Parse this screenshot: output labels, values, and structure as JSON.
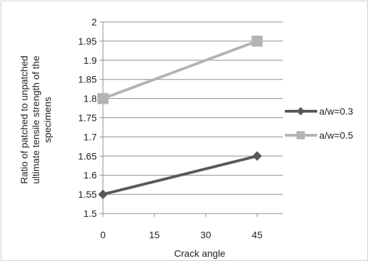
{
  "chart_data": {
    "type": "line",
    "title": "",
    "xlabel": "Crack angle",
    "ylabel": "Ratio of patched to unpatched ultimate tensile strength  of the specimens",
    "ylabel_lines": [
      "Ratio of patched to unpatched",
      "ultimate tensile strength  of the",
      "specimens"
    ],
    "x": [
      0,
      45
    ],
    "x_ticks": [
      "0",
      "15",
      "30",
      "45"
    ],
    "x_tick_values": [
      0,
      15,
      30,
      45
    ],
    "xlim": [
      0,
      52.5
    ],
    "ylim": [
      1.5,
      2.0
    ],
    "y_ticks": [
      "1.5",
      "1.55",
      "1.6",
      "1.65",
      "1.7",
      "1.75",
      "1.8",
      "1.85",
      "1.9",
      "1.95",
      "2"
    ],
    "grid": "horizontal",
    "legend_position": "right",
    "series": [
      {
        "name": "a/w=0.3",
        "values": [
          1.55,
          1.65
        ],
        "color": "#595959",
        "marker": "diamond"
      },
      {
        "name": "a/w=0.5",
        "values": [
          1.8,
          1.95
        ],
        "color": "#b3b3b3",
        "marker": "square"
      }
    ]
  }
}
